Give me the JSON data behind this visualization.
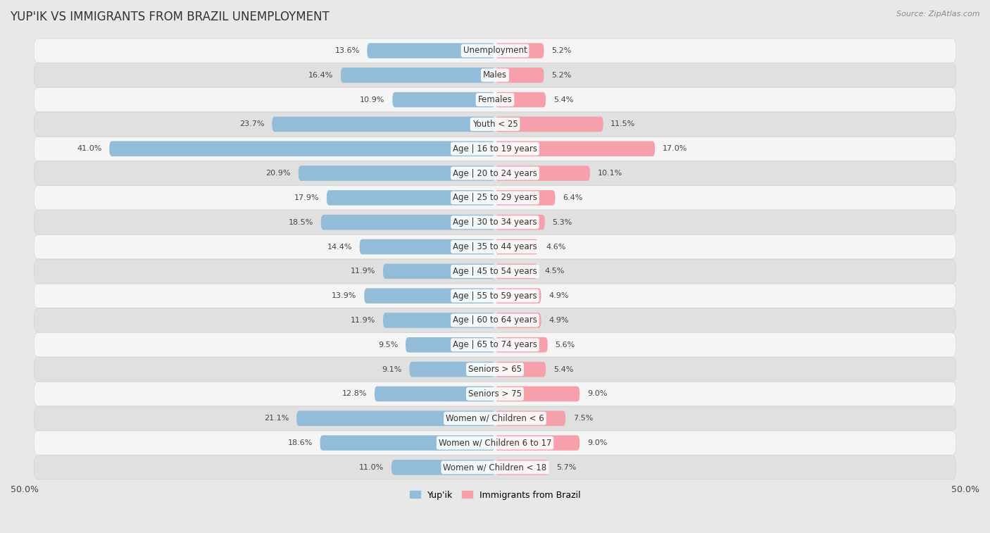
{
  "title": "YUP'IK VS IMMIGRANTS FROM BRAZIL UNEMPLOYMENT",
  "source": "Source: ZipAtlas.com",
  "categories": [
    "Unemployment",
    "Males",
    "Females",
    "Youth < 25",
    "Age | 16 to 19 years",
    "Age | 20 to 24 years",
    "Age | 25 to 29 years",
    "Age | 30 to 34 years",
    "Age | 35 to 44 years",
    "Age | 45 to 54 years",
    "Age | 55 to 59 years",
    "Age | 60 to 64 years",
    "Age | 65 to 74 years",
    "Seniors > 65",
    "Seniors > 75",
    "Women w/ Children < 6",
    "Women w/ Children 6 to 17",
    "Women w/ Children < 18"
  ],
  "yupik_values": [
    13.6,
    16.4,
    10.9,
    23.7,
    41.0,
    20.9,
    17.9,
    18.5,
    14.4,
    11.9,
    13.9,
    11.9,
    9.5,
    9.1,
    12.8,
    21.1,
    18.6,
    11.0
  ],
  "brazil_values": [
    5.2,
    5.2,
    5.4,
    11.5,
    17.0,
    10.1,
    6.4,
    5.3,
    4.6,
    4.5,
    4.9,
    4.9,
    5.6,
    5.4,
    9.0,
    7.5,
    9.0,
    5.7
  ],
  "yupik_color": "#92bcd8",
  "brazil_color": "#f5a0aa",
  "label_yupik": "Yup'ik",
  "label_brazil": "Immigrants from Brazil",
  "background_color": "#e8e8e8",
  "row_color_odd": "#f5f5f5",
  "row_color_even": "#e0e0e0",
  "axis_limit": 50.0,
  "bar_height": 0.62,
  "title_fontsize": 12,
  "source_fontsize": 8,
  "value_fontsize": 8,
  "category_fontsize": 8.5
}
